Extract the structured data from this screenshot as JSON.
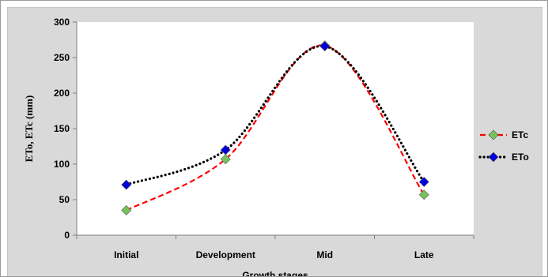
{
  "chart_data": {
    "type": "line",
    "categories": [
      "Initial",
      "Development",
      "Mid",
      "Late"
    ],
    "series": [
      {
        "name": "ETc",
        "values": [
          35,
          107,
          267,
          57
        ],
        "color": "#ff0000",
        "marker_color": "#77c35a",
        "line_style": "dashed"
      },
      {
        "name": "ETo",
        "values": [
          71,
          120,
          266,
          75
        ],
        "color": "#000000",
        "marker_color": "#0000dd",
        "line_style": "dotted"
      }
    ],
    "title": "",
    "xlabel": "Growth stages",
    "ylabel": "ETo, ETc (mm)",
    "ylim": [
      0,
      300
    ],
    "yticks": [
      "0",
      "50",
      "100",
      "150",
      "200",
      "250",
      "300"
    ],
    "smoothed": true,
    "grid": false,
    "legend_position": "right"
  }
}
